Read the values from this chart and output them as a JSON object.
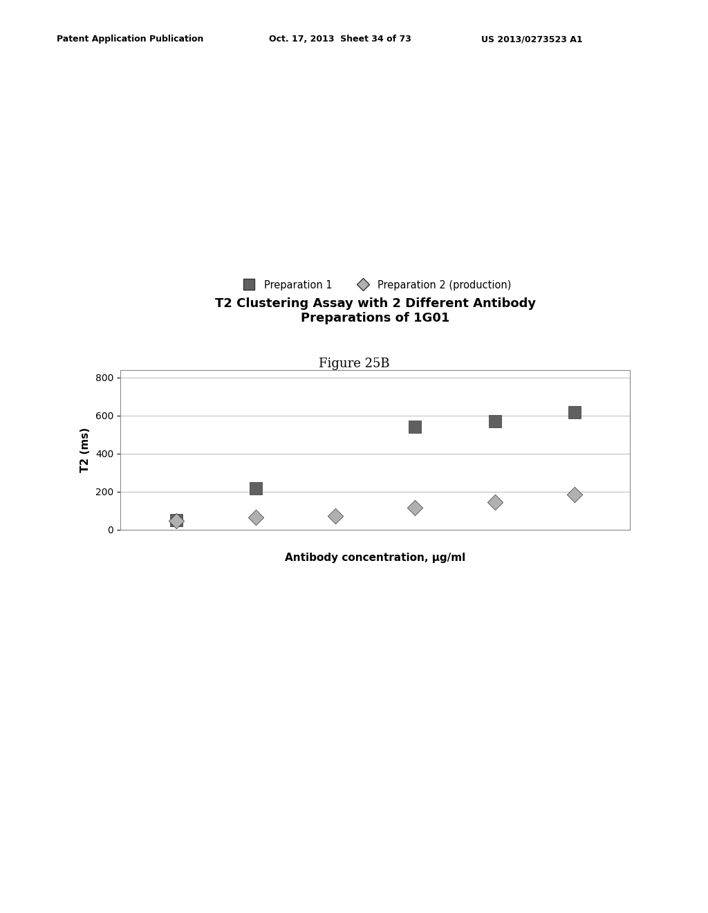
{
  "title": "T2 Clustering Assay with 2 Different Antibody\nPreparations of 1G01",
  "xlabel": "Antibody concentration, μg/ml",
  "ylabel": "T2 (ms)",
  "figure_label": "Figure 25B",
  "header_left": "Patent Application Publication",
  "header_mid": "Oct. 17, 2013  Sheet 34 of 73",
  "header_right": "US 2013/0273523 A1",
  "ylim": [
    0,
    840
  ],
  "yticks": [
    0,
    200,
    400,
    600,
    800
  ],
  "prep1_x_vals": [
    1,
    2,
    4,
    5,
    6
  ],
  "prep1_y_vals": [
    50,
    215,
    540,
    570,
    615
  ],
  "prep2_x_vals": [
    1,
    2,
    3,
    4,
    5,
    6
  ],
  "prep2_y_vals": [
    45,
    65,
    70,
    115,
    145,
    185
  ],
  "legend_label1": "Preparation 1",
  "legend_label2": "Preparation 2 (production)",
  "background_color": "#ffffff",
  "grid_color": "#c0c0c0",
  "prep1_color": "#606060",
  "prep2_color": "#b0b0b0",
  "title_fontsize": 13,
  "label_fontsize": 11,
  "tick_fontsize": 10,
  "header_fontsize": 9,
  "figure_label_fontsize": 13
}
